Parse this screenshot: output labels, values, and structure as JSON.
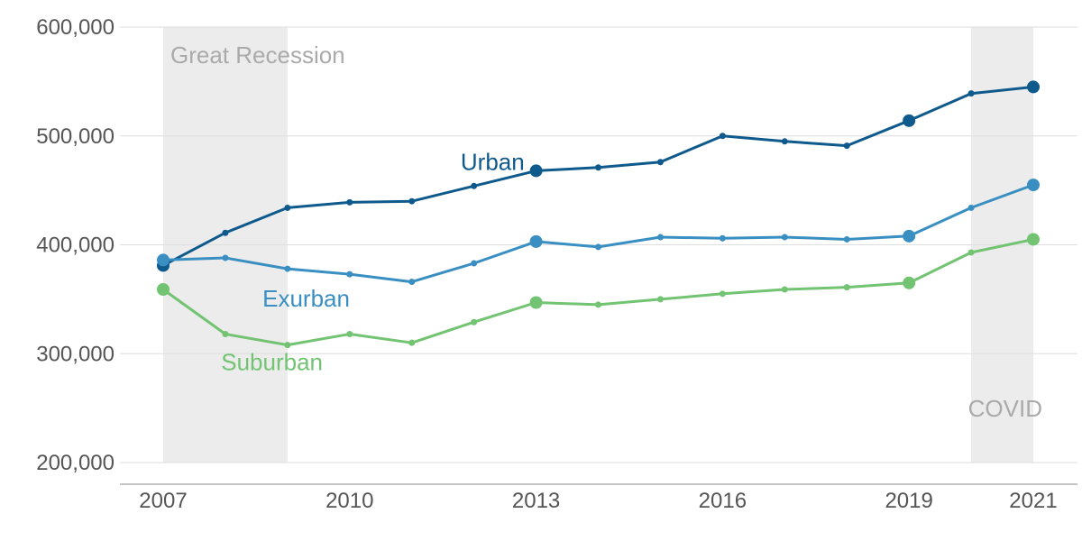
{
  "chart_data": {
    "type": "line",
    "x": [
      2007,
      2008,
      2009,
      2010,
      2011,
      2012,
      2013,
      2014,
      2015,
      2016,
      2017,
      2018,
      2019,
      2020,
      2021
    ],
    "xticks": [
      2007,
      2010,
      2013,
      2016,
      2019,
      2021
    ],
    "xtick_labels": [
      "2007",
      "2010",
      "2013",
      "2016",
      "2019",
      "2021"
    ],
    "yticks": [
      200000,
      300000,
      400000,
      500000,
      600000
    ],
    "ytick_labels": [
      "200,000",
      "300,000",
      "400,000",
      "500,000",
      "600,000"
    ],
    "xlim": [
      2007,
      2021
    ],
    "ylim": [
      200000,
      600000
    ],
    "grid": "horizontal",
    "shaded_periods": [
      {
        "label": "Great Recession",
        "start": 2007,
        "end": 2009
      },
      {
        "label": "COVID",
        "start": 2020,
        "end": 2021
      }
    ],
    "big_marker_years": [
      2007,
      2013,
      2019,
      2021
    ],
    "series": [
      {
        "name": "Urban",
        "color": "#0f5a8c",
        "values": [
          381000,
          411000,
          434000,
          439000,
          440000,
          454000,
          468000,
          471000,
          476000,
          500000,
          495000,
          491000,
          514000,
          539000,
          545000
        ]
      },
      {
        "name": "Exurban",
        "color": "#3a8fc2",
        "values": [
          386000,
          388000,
          378000,
          373000,
          366000,
          383000,
          403000,
          398000,
          407000,
          406000,
          407000,
          405000,
          408000,
          434000,
          455000
        ]
      },
      {
        "name": "Suburban",
        "color": "#72c372",
        "values": [
          359000,
          318000,
          308000,
          318000,
          310000,
          329000,
          347000,
          345000,
          350000,
          355000,
          359000,
          361000,
          365000,
          393000,
          405000
        ]
      }
    ]
  }
}
